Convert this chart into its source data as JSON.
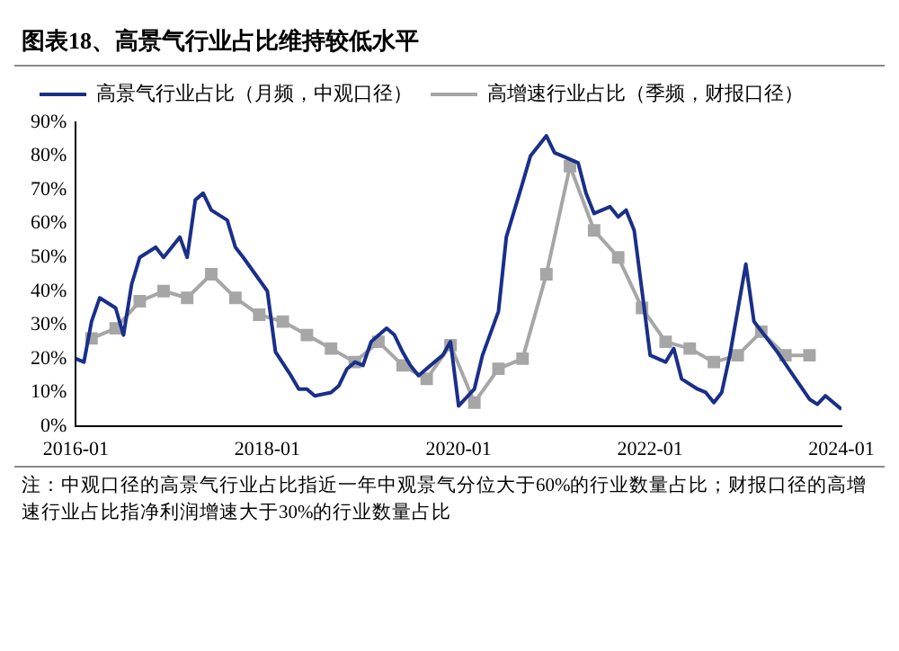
{
  "chart_data": {
    "type": "line",
    "title": "图表18、高景气行业占比维持较低水平",
    "xlim": [
      "2016-01",
      "2024-01"
    ],
    "xticks": [
      "2016-01",
      "2018-01",
      "2020-01",
      "2022-01",
      "2024-01"
    ],
    "ylim": [
      0,
      90
    ],
    "yticks": [
      {
        "value": 0,
        "label": "0%"
      },
      {
        "value": 10,
        "label": "10%"
      },
      {
        "value": 20,
        "label": "20%"
      },
      {
        "value": 30,
        "label": "30%"
      },
      {
        "value": 40,
        "label": "40%"
      },
      {
        "value": 50,
        "label": "50%"
      },
      {
        "value": 60,
        "label": "60%"
      },
      {
        "value": 70,
        "label": "70%"
      },
      {
        "value": 80,
        "label": "80%"
      },
      {
        "value": 90,
        "label": "90%"
      }
    ],
    "grid": false,
    "legend": "top left",
    "series": [
      {
        "name": "高景气行业占比（月频，中观口径）",
        "color": "#1a2f8a",
        "marker": "none",
        "x": [
          "2016-01",
          "2016-02",
          "2016-03",
          "2016-04",
          "2016-06",
          "2016-07",
          "2016-08",
          "2016-09",
          "2016-11",
          "2016-12",
          "2017-02",
          "2017-03",
          "2017-04",
          "2017-05",
          "2017-06",
          "2017-08",
          "2017-09",
          "2017-10",
          "2018-01",
          "2018-02",
          "2018-04",
          "2018-05",
          "2018-06",
          "2018-07",
          "2018-09",
          "2018-10",
          "2018-11",
          "2018-12",
          "2019-01",
          "2019-02",
          "2019-04",
          "2019-05",
          "2019-06",
          "2019-07",
          "2019-08",
          "2019-10",
          "2019-11",
          "2019-12",
          "2020-01",
          "2020-03",
          "2020-04",
          "2020-06",
          "2020-07",
          "2020-09",
          "2020-10",
          "2020-12",
          "2021-01",
          "2021-02",
          "2021-04",
          "2021-05",
          "2021-06",
          "2021-08",
          "2021-09",
          "2021-10",
          "2021-11",
          "2021-12",
          "2022-01",
          "2022-03",
          "2022-04",
          "2022-05",
          "2022-07",
          "2022-08",
          "2022-09",
          "2022-10",
          "2022-11",
          "2023-01",
          "2023-02",
          "2023-05",
          "2023-07",
          "2023-09",
          "2023-10",
          "2023-11",
          "2024-01"
        ],
        "values": [
          20,
          19,
          31,
          38,
          35,
          27,
          42,
          50,
          53,
          50,
          56,
          50,
          67,
          69,
          64,
          61,
          53,
          50,
          40,
          22,
          15,
          11,
          11,
          9,
          10,
          12,
          17,
          19,
          18,
          25,
          29,
          27,
          22,
          18,
          15,
          19,
          21,
          25,
          6,
          11,
          21,
          34,
          56,
          72,
          80,
          86,
          81,
          80,
          78,
          69,
          63,
          65,
          62,
          64,
          58,
          40,
          21,
          19,
          23,
          14,
          11,
          10,
          7,
          10,
          21,
          48,
          31,
          22,
          15,
          8,
          6.5,
          9,
          5
        ]
      },
      {
        "name": "高增速行业占比（季频，财报口径）",
        "color": "#a6a6a6",
        "marker": "square",
        "x": [
          "2016-03",
          "2016-06",
          "2016-09",
          "2016-12",
          "2017-03",
          "2017-06",
          "2017-09",
          "2017-12",
          "2018-03",
          "2018-06",
          "2018-09",
          "2018-12",
          "2019-03",
          "2019-06",
          "2019-09",
          "2019-12",
          "2020-03",
          "2020-06",
          "2020-09",
          "2020-12",
          "2021-03",
          "2021-06",
          "2021-09",
          "2021-12",
          "2022-03",
          "2022-06",
          "2022-09",
          "2022-12",
          "2023-03",
          "2023-06",
          "2023-09"
        ],
        "values": [
          26,
          29,
          37,
          40,
          38,
          45,
          38,
          33,
          31,
          27,
          23,
          19,
          25,
          18,
          14,
          24,
          7,
          17,
          20,
          45,
          77,
          58,
          50,
          35,
          25,
          23,
          19,
          21,
          28,
          21,
          21
        ]
      }
    ],
    "annotations": [
      "注：中观口径的高景气行业占比指近一年中观景气分位大于60%的行业数量占比；财报口径的高增速行业占比指净利润增速大于30%的行业数量占比"
    ]
  }
}
